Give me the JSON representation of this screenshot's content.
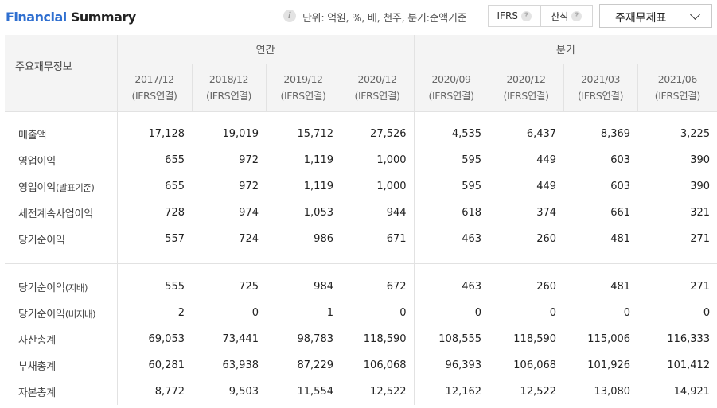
{
  "header": {
    "title_part1": "Financial",
    "title_part2": "Summary",
    "info_icon": "info-icon",
    "unit_text": "단위: 억원, %, 배, 천주, 분기:순액기준",
    "toggle": [
      {
        "label": "IFRS",
        "help_icon": "question-icon"
      },
      {
        "label": "산식",
        "help_icon": "question-icon"
      }
    ],
    "dropdown": {
      "selected": "주재무제표",
      "icon": "chevron-down-icon"
    }
  },
  "table": {
    "corner_label": "주요재무정보",
    "groups": [
      "연간",
      "분기"
    ],
    "periods": [
      {
        "date": "2017/12",
        "basis": "(IFRS연결)"
      },
      {
        "date": "2018/12",
        "basis": "(IFRS연결)"
      },
      {
        "date": "2019/12",
        "basis": "(IFRS연결)"
      },
      {
        "date": "2020/12",
        "basis": "(IFRS연결)"
      },
      {
        "date": "2020/09",
        "basis": "(IFRS연결)"
      },
      {
        "date": "2020/12",
        "basis": "(IFRS연결)"
      },
      {
        "date": "2021/03",
        "basis": "(IFRS연결)"
      },
      {
        "date": "2021/06",
        "basis": "(IFRS연결)"
      }
    ],
    "rows_a": [
      {
        "label": "매출액",
        "sub": "",
        "values": [
          "17,128",
          "19,019",
          "15,712",
          "27,526",
          "4,535",
          "6,437",
          "8,369",
          "3,225"
        ]
      },
      {
        "label": "영업이익",
        "sub": "",
        "values": [
          "655",
          "972",
          "1,119",
          "1,000",
          "595",
          "449",
          "603",
          "390"
        ]
      },
      {
        "label": "영업이익",
        "sub": "(발표기준)",
        "values": [
          "655",
          "972",
          "1,119",
          "1,000",
          "595",
          "449",
          "603",
          "390"
        ]
      },
      {
        "label": "세전계속사업이익",
        "sub": "",
        "values": [
          "728",
          "974",
          "1,053",
          "944",
          "618",
          "374",
          "661",
          "321"
        ]
      },
      {
        "label": "당기순이익",
        "sub": "",
        "values": [
          "557",
          "724",
          "986",
          "671",
          "463",
          "260",
          "481",
          "271"
        ]
      }
    ],
    "rows_b": [
      {
        "label": "당기순이익",
        "sub": "(지배)",
        "values": [
          "555",
          "725",
          "984",
          "672",
          "463",
          "260",
          "481",
          "271"
        ]
      },
      {
        "label": "당기순이익",
        "sub": "(비지배)",
        "values": [
          "2",
          "0",
          "1",
          "0",
          "0",
          "0",
          "0",
          "0"
        ]
      },
      {
        "label": "자산총계",
        "sub": "",
        "values": [
          "69,053",
          "73,441",
          "98,783",
          "118,590",
          "108,555",
          "118,590",
          "115,006",
          "116,333"
        ]
      },
      {
        "label": "부채총계",
        "sub": "",
        "values": [
          "60,281",
          "63,938",
          "87,229",
          "106,068",
          "96,393",
          "106,068",
          "101,926",
          "101,412"
        ]
      },
      {
        "label": "자본총계",
        "sub": "",
        "values": [
          "8,772",
          "9,503",
          "11,554",
          "12,522",
          "12,162",
          "12,522",
          "13,080",
          "14,921"
        ]
      }
    ]
  }
}
